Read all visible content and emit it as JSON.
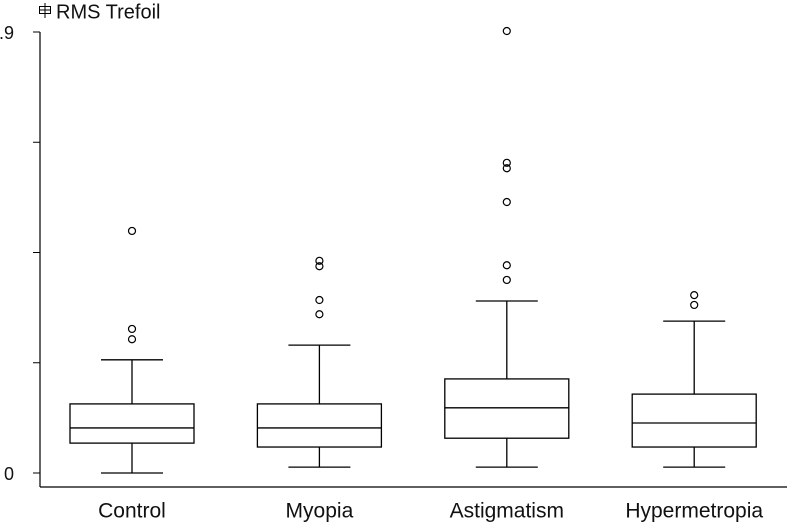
{
  "chart_data": {
    "type": "box",
    "categories": [
      "Control",
      "Myopia",
      "Astigmatism",
      "Hypermetropia"
    ],
    "series": [
      {
        "name": "RMS Trefoil",
        "color": "#000000",
        "boxes": [
          {
            "min": 0,
            "q1": 0.061,
            "median": 0.092,
            "q3": 0.141,
            "max": 0.231,
            "outliers": [
              0.273,
              0.294,
              0.494
            ]
          },
          {
            "min": 0.012,
            "q1": 0.053,
            "median": 0.092,
            "q3": 0.141,
            "max": 0.261,
            "outliers": [
              0.324,
              0.353,
              0.422,
              0.433
            ]
          },
          {
            "min": 0.012,
            "q1": 0.071,
            "median": 0.133,
            "q3": 0.192,
            "max": 0.351,
            "outliers": [
              0.394,
              0.424,
              0.553,
              0.622,
              0.633,
              0.902
            ]
          },
          {
            "min": 0.012,
            "q1": 0.053,
            "median": 0.102,
            "q3": 0.161,
            "max": 0.31,
            "outliers": [
              0.343,
              0.363
            ]
          }
        ]
      }
    ],
    "ylim": [
      0,
      0.9
    ],
    "yticks": [
      0,
      {
        "value": 0.9,
        "label": ".9"
      }
    ],
    "yminorticks": [
      0.225,
      0.45,
      0.675
    ]
  }
}
